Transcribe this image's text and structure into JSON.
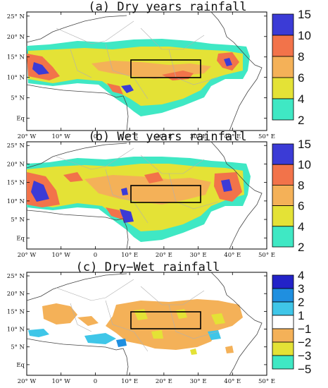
{
  "chart_data": [
    {
      "type": "heatmap",
      "title": "(a) Dry years rainfall",
      "x_tick_labels": [
        "20° W",
        "10° W",
        "0",
        "10° E",
        "20° E",
        "30° E",
        "40° E",
        "50° E"
      ],
      "y_tick_labels": [
        "25° N",
        "20° N",
        "15° N",
        "10° N",
        "5° N",
        "Eq"
      ],
      "xlim": [
        -20,
        50
      ],
      "ylim": [
        -3,
        26
      ],
      "colorbar": {
        "labels": [
          "15",
          "10",
          "8",
          "6",
          "4",
          "2"
        ],
        "colors": [
          "#3b3bd6",
          "#f2734a",
          "#f4b158",
          "#e4e236",
          "#3fe8c4"
        ]
      },
      "box": {
        "lon": [
          10,
          30
        ],
        "lat": [
          7.5,
          12.5
        ]
      }
    },
    {
      "type": "heatmap",
      "title": "(b) Wet years rainfall",
      "x_tick_labels": [
        "20° W",
        "10° W",
        "0",
        "10° E",
        "20° E",
        "30° E",
        "40° E",
        "50° E"
      ],
      "y_tick_labels": [
        "25° N",
        "20° N",
        "15° N",
        "10° N",
        "5° N",
        "Eq"
      ],
      "xlim": [
        -20,
        50
      ],
      "ylim": [
        -3,
        26
      ],
      "colorbar": {
        "labels": [
          "15",
          "10",
          "8",
          "6",
          "4",
          "2"
        ],
        "colors": [
          "#3b3bd6",
          "#f2734a",
          "#f4b158",
          "#e4e236",
          "#3fe8c4"
        ]
      },
      "box": {
        "lon": [
          10,
          30
        ],
        "lat": [
          7.5,
          12.5
        ]
      }
    },
    {
      "type": "heatmap",
      "title": "(c) Dry−Wet rainfall",
      "x_tick_labels": [
        "20° W",
        "10° W",
        "0",
        "10° E",
        "20° E",
        "30° E",
        "40° E",
        "50° E"
      ],
      "y_tick_labels": [
        "25° N",
        "20° N",
        "15° N",
        "10° N",
        "5° N",
        "Eq"
      ],
      "xlim": [
        -20,
        50
      ],
      "ylim": [
        -3,
        26
      ],
      "colorbar": {
        "labels": [
          "4",
          "3",
          "2",
          "1",
          "−1",
          "−2",
          "−3",
          "−5"
        ],
        "colors": [
          "#2323c8",
          "#1f8fe0",
          "#3fc6e8",
          "#ffffff",
          "#f4b158",
          "#e4e236",
          "#3fe8c4"
        ]
      },
      "box": {
        "lon": [
          10,
          30
        ],
        "lat": [
          7.5,
          12.5
        ]
      }
    }
  ]
}
